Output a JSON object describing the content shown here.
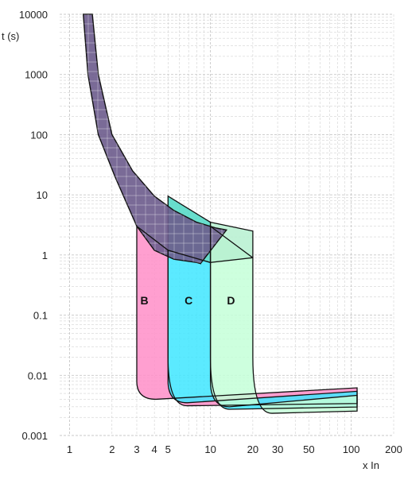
{
  "chart_data": {
    "type": "area",
    "ylabel": "t (s)",
    "xlabel": "x In",
    "x_scale": "log",
    "y_scale": "log",
    "xlim": [
      0.85,
      200
    ],
    "ylim": [
      0.001,
      10000
    ],
    "x_ticks": [
      1,
      2,
      3,
      4,
      5,
      10,
      20,
      30,
      50,
      100,
      200
    ],
    "x_tick_labels": [
      "1",
      "2",
      "3",
      "4",
      "5",
      "10",
      "20",
      "30",
      "50",
      "100",
      "200"
    ],
    "y_ticks": [
      0.001,
      0.01,
      0.1,
      1,
      10,
      100,
      1000,
      10000
    ],
    "y_tick_labels": [
      "0.001",
      "0.01",
      "0.1",
      "1",
      "10",
      "100",
      "1000",
      "10000"
    ],
    "grid": true,
    "colors": {
      "thermal": "#6b5b8c",
      "B": "#ff8ec8",
      "C": "#3ee6ff",
      "D": "#c4ffd8",
      "C_thermal": "#4ed8c4",
      "D_thermal": "#b6f0d0",
      "outline": "#111111",
      "grid": "#c8c8c8"
    },
    "thermal_band": {
      "upper": [
        [
          1.45,
          10000
        ],
        [
          1.6,
          1000
        ],
        [
          2,
          100
        ],
        [
          2.8,
          25
        ],
        [
          4,
          9.5
        ],
        [
          5.5,
          5.5
        ],
        [
          8,
          3.5
        ],
        [
          11,
          2.8
        ],
        [
          13,
          2.6
        ]
      ],
      "lower": [
        [
          1.25,
          10000
        ],
        [
          1.35,
          1000
        ],
        [
          1.6,
          100
        ],
        [
          2.1,
          20
        ],
        [
          3,
          3
        ],
        [
          4,
          1.2
        ],
        [
          5.5,
          0.85
        ],
        [
          8,
          0.75
        ],
        [
          8.5,
          0.72
        ]
      ]
    },
    "series": [
      {
        "name": "B",
        "x_min": 3,
        "x_max": 5,
        "instantaneous_min_time": 0.004,
        "lower_trip_current": 3,
        "upper_trip_current": 5
      },
      {
        "name": "C",
        "x_min": 5,
        "x_max": 10,
        "instantaneous_min_time": 0.0035,
        "lower_trip_current": 5,
        "upper_trip_current": 10
      },
      {
        "name": "D",
        "x_min": 10,
        "x_max": 20,
        "instantaneous_min_time": 0.003,
        "lower_trip_current": 10,
        "upper_trip_current": 20
      }
    ]
  }
}
